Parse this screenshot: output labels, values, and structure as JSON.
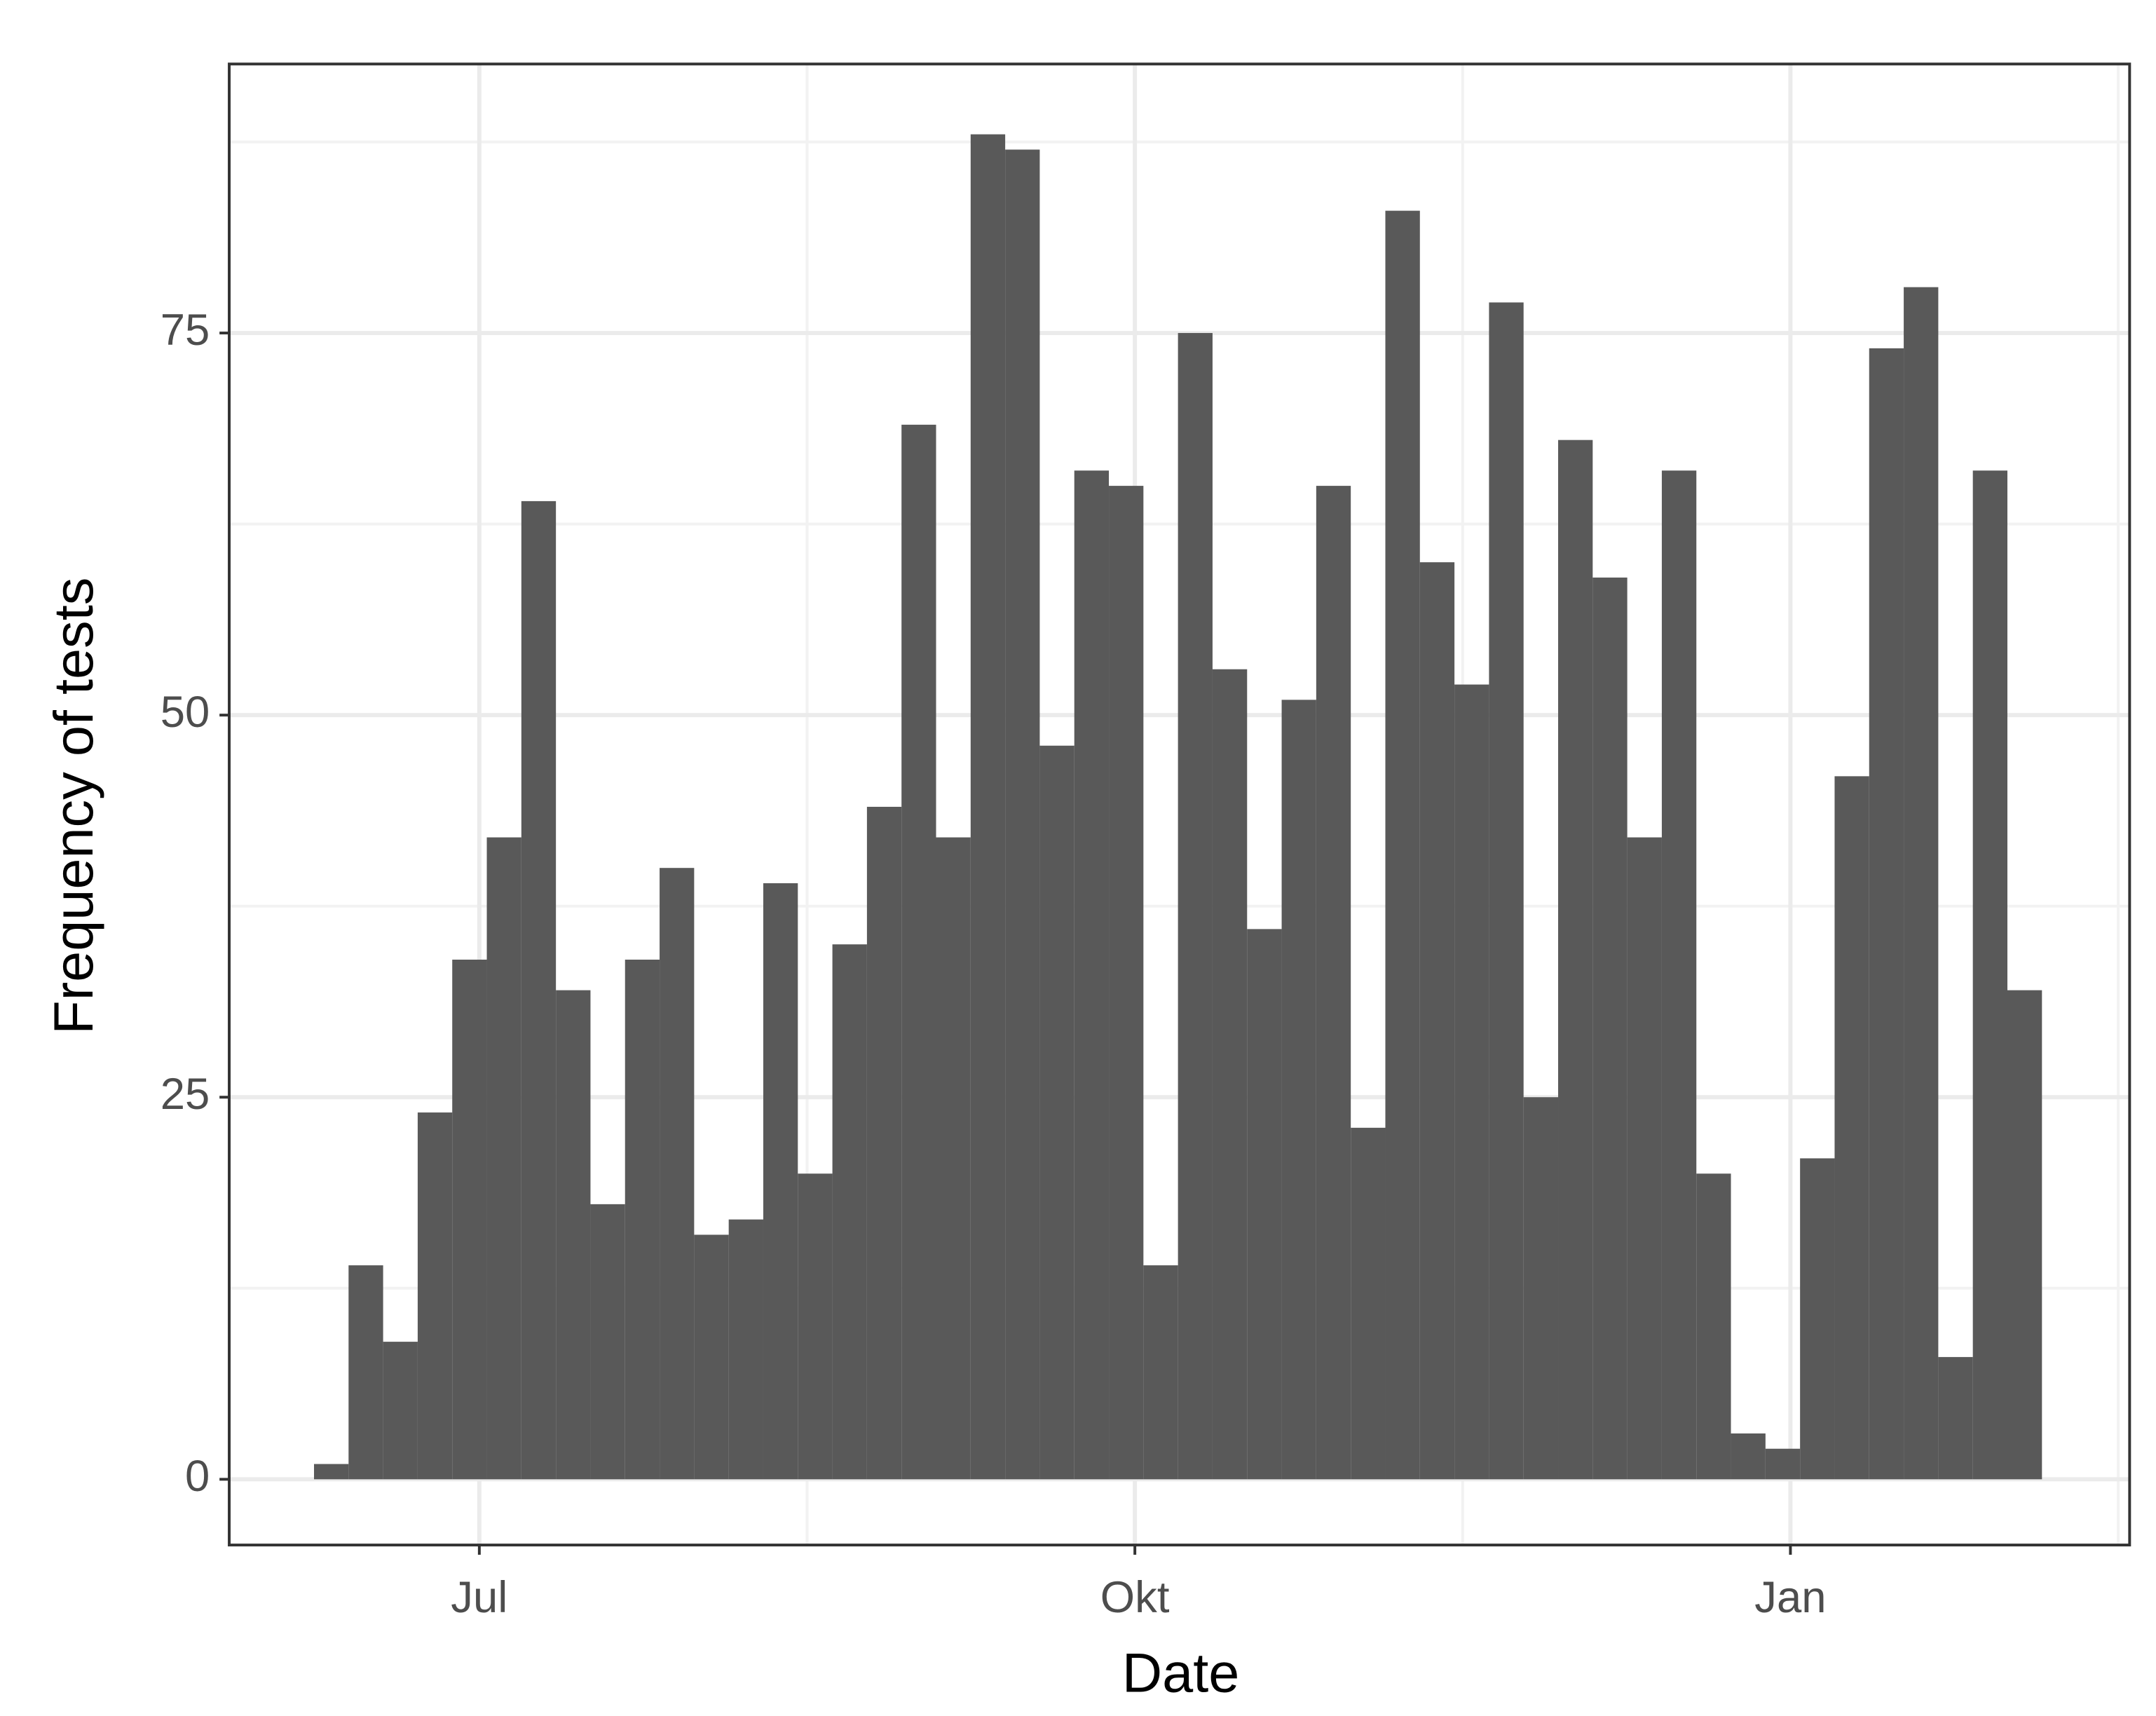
{
  "chart_data": {
    "type": "histogram",
    "x_label": "Date",
    "y_label": "Frequency of tests",
    "bins": [
      -23.2,
      -18.35,
      -13.5,
      -8.65,
      -3.8,
      1.05,
      5.9,
      10.75,
      15.6,
      20.45,
      25.3,
      30.15,
      35,
      39.85,
      44.7,
      49.55,
      54.4,
      59.25,
      64.1,
      68.95,
      73.8,
      78.65,
      83.5,
      88.35,
      93.2,
      98.05,
      102.9,
      107.75,
      112.6,
      117.45,
      122.3,
      127.15,
      132,
      136.85,
      141.7,
      146.55,
      151.4,
      156.25,
      161.1,
      165.95,
      170.8,
      175.65,
      180.5,
      185.35,
      190.2,
      195.05,
      199.9,
      204.75,
      209.6,
      214.45,
      219.3
    ],
    "counts": [
      1,
      14,
      9,
      24,
      34,
      42,
      64,
      32,
      18,
      34,
      40,
      16,
      17,
      39,
      20,
      35,
      44,
      69,
      42,
      88,
      87,
      48,
      66,
      65,
      14,
      75,
      53,
      36,
      51,
      65,
      23,
      83,
      60,
      52,
      77,
      25,
      68,
      59,
      42,
      66,
      20,
      3,
      2,
      21,
      46,
      74,
      78,
      8,
      66,
      32
    ],
    "color": "#595959",
    "xlim": [
      -35.1,
      231.6
    ],
    "xticks": [
      {
        "value": 0,
        "label": "Jul"
      },
      {
        "value": 92,
        "label": "Okt"
      },
      {
        "value": 184,
        "label": "Jan"
      }
    ],
    "ylim": [
      -4.3,
      92.6
    ],
    "yticks": [
      0,
      25,
      50,
      75
    ],
    "grid": true,
    "minor_grid": true
  }
}
